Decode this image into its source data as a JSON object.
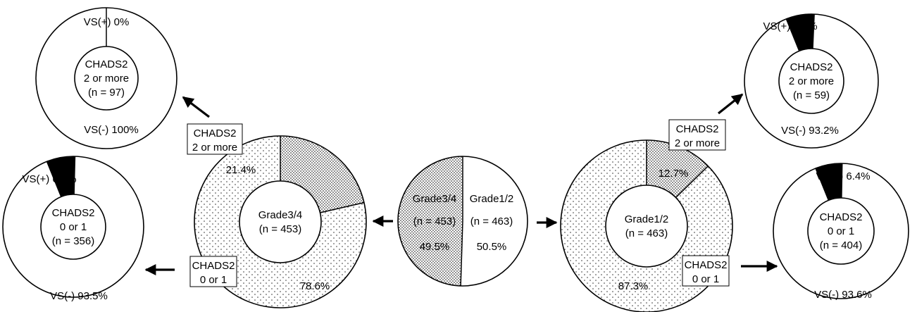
{
  "chart_data": [
    {
      "type": "pie",
      "id": "center",
      "slices": [
        {
          "lines": [
            "Grade3/4",
            "(n = 453)",
            "49.5%"
          ],
          "value": 49.5,
          "pattern": "dense"
        },
        {
          "lines": [
            "Grade1/2",
            "(n = 463)",
            "50.5%"
          ],
          "value": 50.5,
          "pattern": "white"
        }
      ]
    },
    {
      "type": "pie",
      "id": "grade34",
      "center_lines": [
        "Grade3/4",
        "(n = 453)"
      ],
      "slices": [
        {
          "name": "CHADS2 2 or more",
          "label": "21.4%",
          "value": 21.4,
          "pattern": "dense"
        },
        {
          "name": "CHADS2 0 or 1",
          "label": "78.6%",
          "value": 78.6,
          "pattern": "sparse"
        }
      ],
      "callouts": [
        [
          "CHADS2",
          "2 or more"
        ],
        [
          "CHADS2",
          "0 or 1"
        ]
      ]
    },
    {
      "type": "pie",
      "id": "grade12",
      "center_lines": [
        "Grade1/2",
        "(n = 463)"
      ],
      "slices": [
        {
          "name": "CHADS2 2 or more",
          "label": "12.7%",
          "value": 12.7,
          "pattern": "dense"
        },
        {
          "name": "CHADS2 0 or 1",
          "label": "87.3%",
          "value": 87.3,
          "pattern": "sparse"
        }
      ],
      "callouts": [
        [
          "CHADS2",
          "2 or more"
        ],
        [
          "CHADS2",
          "0 or 1"
        ]
      ]
    },
    {
      "type": "pie",
      "id": "g34_high",
      "center_lines": [
        "CHADS2",
        "2 or more",
        "(n = 97)"
      ],
      "slices": [
        {
          "name": "VS(+)",
          "label": "VS(+) 0%",
          "value": 0,
          "pattern": "black"
        },
        {
          "name": "VS(-)",
          "label": "VS(-)  100%",
          "value": 100,
          "pattern": "white"
        }
      ]
    },
    {
      "type": "pie",
      "id": "g34_low",
      "center_lines": [
        "CHADS2",
        "0 or 1",
        "(n = 356)"
      ],
      "slices": [
        {
          "name": "VS(+)",
          "label": "VS(+) 6.5%",
          "value": 6.5,
          "pattern": "black"
        },
        {
          "name": "VS(-)",
          "label": "VS(-)  93.5%",
          "value": 93.5,
          "pattern": "white"
        }
      ]
    },
    {
      "type": "pie",
      "id": "g12_high",
      "center_lines": [
        "CHADS2",
        "2 or more",
        "(n = 59)"
      ],
      "slices": [
        {
          "name": "VS(+)",
          "label": "VS(+) 6.8%",
          "value": 6.8,
          "pattern": "black"
        },
        {
          "name": "VS(-)",
          "label": "VS(-)  93.2%",
          "value": 93.2,
          "pattern": "white"
        }
      ]
    },
    {
      "type": "pie",
      "id": "g12_low",
      "center_lines": [
        "CHADS2",
        "0 or 1",
        "(n = 404)"
      ],
      "slices": [
        {
          "name": "VS(+)",
          "label": "VS(+) 6.4%",
          "value": 6.4,
          "pattern": "black"
        },
        {
          "name": "VS(-)",
          "label": "VS(-)  93.6%",
          "value": 93.6,
          "pattern": "white"
        }
      ]
    }
  ]
}
